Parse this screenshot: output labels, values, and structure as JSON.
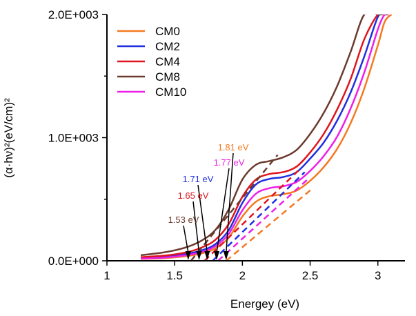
{
  "chart_data": {
    "type": "line",
    "xlabel": "Energey (eV)",
    "ylabel_html": "(α·hν)²(eV/cm)²",
    "xlim": [
      1.0,
      3.2
    ],
    "ylim": [
      0,
      2000
    ],
    "x_ticks": [
      1,
      1.5,
      2,
      2.5,
      3
    ],
    "x_tick_labels": [
      "1",
      "1.5",
      "2",
      "2.5",
      "3"
    ],
    "y_ticks": [
      0,
      1000,
      2000
    ],
    "y_tick_labels": [
      "0.0E+000",
      "1.0E+003",
      "2.0E+003"
    ],
    "y_minor_ticks": [
      500,
      1500
    ],
    "legend_position": "top-left",
    "series": [
      {
        "name": "CM0",
        "color": "#f47920",
        "x": [
          1.25,
          1.4,
          1.5,
          1.6,
          1.7,
          1.8,
          1.9,
          2.0,
          2.1,
          2.2,
          2.3,
          2.4,
          2.5,
          2.6,
          2.7,
          2.8,
          2.9,
          3.0,
          3.05,
          3.1
        ],
        "y": [
          15,
          20,
          28,
          40,
          60,
          100,
          190,
          360,
          480,
          525,
          540,
          570,
          650,
          760,
          910,
          1120,
          1400,
          1750,
          1940,
          2000
        ],
        "gap_eV": 1.81,
        "fit_x": [
          1.88,
          2.52
        ],
        "fit_y": [
          0,
          590
        ]
      },
      {
        "name": "CM2",
        "color": "#1f2fe0",
        "x": [
          1.25,
          1.4,
          1.5,
          1.6,
          1.7,
          1.8,
          1.9,
          2.0,
          2.1,
          2.2,
          2.3,
          2.4,
          2.5,
          2.6,
          2.7,
          2.8,
          2.9,
          3.0,
          3.05
        ],
        "y": [
          25,
          32,
          42,
          58,
          85,
          135,
          250,
          470,
          620,
          665,
          680,
          720,
          830,
          960,
          1140,
          1370,
          1660,
          1980,
          2000
        ],
        "gap_eV": 1.71,
        "fit_x": [
          1.78,
          2.46
        ],
        "fit_y": [
          0,
          720
        ]
      },
      {
        "name": "CM4",
        "color": "#e0141e",
        "x": [
          1.25,
          1.4,
          1.5,
          1.6,
          1.7,
          1.8,
          1.9,
          2.0,
          2.1,
          2.2,
          2.3,
          2.4,
          2.5,
          2.6,
          2.7,
          2.8,
          2.9,
          3.0,
          3.05
        ],
        "y": [
          30,
          40,
          52,
          72,
          108,
          170,
          300,
          520,
          660,
          705,
          720,
          765,
          880,
          1030,
          1230,
          1480,
          1800,
          2000,
          2000
        ],
        "gap_eV": 1.65,
        "fit_x": [
          1.72,
          2.42
        ],
        "fit_y": [
          0,
          740
        ]
      },
      {
        "name": "CM8",
        "color": "#6b3a2e",
        "x": [
          1.25,
          1.4,
          1.5,
          1.6,
          1.7,
          1.8,
          1.9,
          2.0,
          2.1,
          2.2,
          2.3,
          2.4,
          2.5,
          2.6,
          2.7,
          2.8,
          2.9,
          3.0,
          3.08
        ],
        "y": [
          45,
          65,
          85,
          115,
          165,
          250,
          420,
          660,
          780,
          810,
          840,
          900,
          1030,
          1200,
          1420,
          1700,
          2000,
          2000,
          2000
        ],
        "gap_eV": 1.53,
        "fit_x": [
          1.62,
          2.26
        ],
        "fit_y": [
          0,
          860
        ]
      },
      {
        "name": "CM10",
        "color": "#ee1fe6",
        "x": [
          1.25,
          1.4,
          1.5,
          1.6,
          1.7,
          1.8,
          1.9,
          2.0,
          2.1,
          2.2,
          2.3,
          2.4,
          2.5,
          2.6,
          2.7,
          2.8,
          2.9,
          3.0,
          3.05,
          3.08
        ],
        "y": [
          18,
          24,
          34,
          48,
          72,
          118,
          220,
          410,
          545,
          590,
          605,
          640,
          730,
          850,
          1010,
          1240,
          1530,
          1880,
          2000,
          2000
        ],
        "gap_eV": 1.77,
        "fit_x": [
          1.82,
          2.48
        ],
        "fit_y": [
          0,
          660
        ]
      }
    ],
    "annotations": [
      {
        "text": "1.81 eV",
        "color": "#f47920",
        "arrow_x": 1.88
      },
      {
        "text": "1.77 eV",
        "color": "#ee1fe6",
        "arrow_x": 1.81
      },
      {
        "text": "1.71 eV",
        "color": "#1f2fe0",
        "arrow_x": 1.74
      },
      {
        "text": "1.65 eV",
        "color": "#e0141e",
        "arrow_x": 1.68
      },
      {
        "text": "1.53 eV",
        "color": "#6b3a2e",
        "arrow_x": 1.6
      }
    ]
  }
}
